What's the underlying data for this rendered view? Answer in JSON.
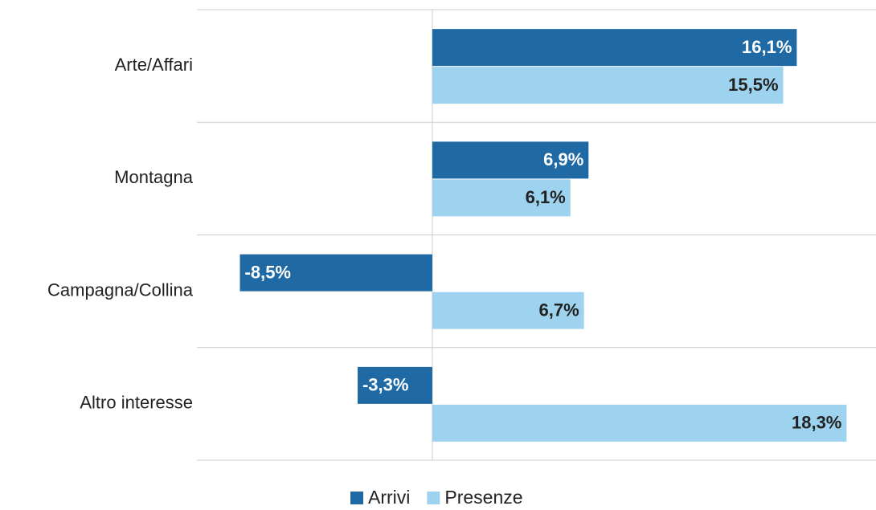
{
  "chart_data": {
    "type": "hbar",
    "categories": [
      "Arte/Affari",
      "Montagna",
      "Campagna/Collina",
      "Altro interesse"
    ],
    "series": [
      {
        "name": "Arrivi",
        "color": "#1f6aa5",
        "label_color": "#ffffff",
        "values": [
          16.1,
          6.9,
          -8.5,
          -3.3
        ],
        "value_labels": [
          "16,1%",
          "6,9%",
          "-8,5%",
          "-3,3%"
        ]
      },
      {
        "name": "Presenze",
        "color": "#9dd3ef",
        "label_color": "#222222",
        "values": [
          15.5,
          6.1,
          6.7,
          18.3
        ],
        "value_labels": [
          "15,5%",
          "6,1%",
          "6,7%",
          "18,3%"
        ]
      }
    ],
    "xlim": [
      -10.4,
      19.6
    ],
    "legend": "bottom"
  }
}
